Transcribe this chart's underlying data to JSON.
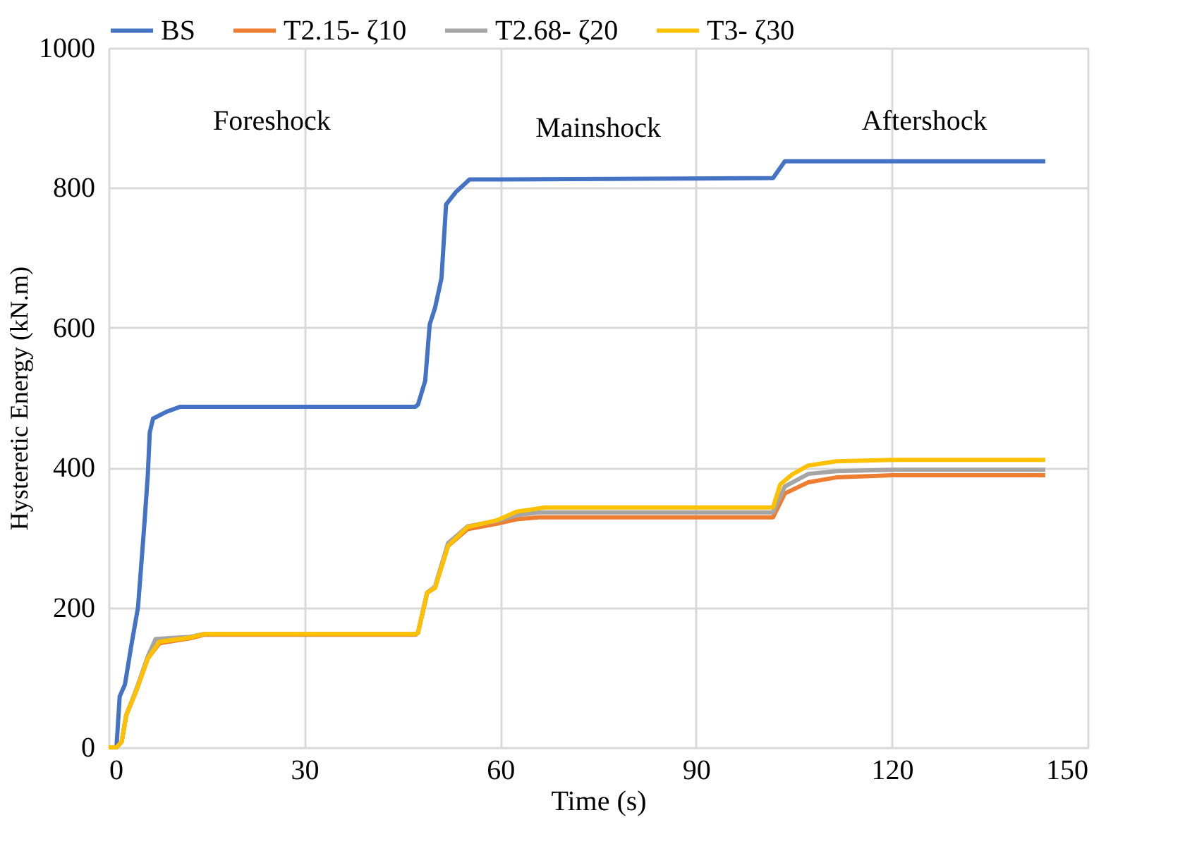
{
  "chart_data": {
    "type": "line",
    "xlabel": "Time (s)",
    "ylabel": "Hysteretic Energy (kN.m)",
    "xlim": [
      0,
      150
    ],
    "xticks": [
      0,
      30,
      60,
      90,
      120,
      150
    ],
    "ylim": [
      0,
      1000
    ],
    "yticks": [
      0,
      200,
      400,
      600,
      800,
      {
        "value": 1000,
        "label": "1000"
      }
    ],
    "grid": true,
    "legend": "top",
    "line_style": "solid",
    "marker": "none",
    "annotations": [
      "Foreshock",
      "Mainshock",
      "Aftershock"
    ],
    "series": [
      {
        "name": "BS",
        "color": "#4472c4",
        "x": [
          0,
          1.2,
          1.7,
          2.5,
          3.5,
          4.5,
          5.5,
          6,
          6.3,
          6.8,
          8.9,
          11,
          47,
          47.4,
          48.5,
          49.2,
          50,
          51,
          51.7,
          53.2,
          55.3,
          60,
          101.8,
          103.6,
          143.5
        ],
        "values": [
          0,
          0,
          73,
          90,
          147,
          200,
          322,
          389,
          450,
          470,
          480,
          487,
          487,
          490,
          524,
          605,
          628,
          671,
          776,
          794,
          812,
          812,
          814,
          838,
          838
        ]
      },
      {
        "name": "T2.15- ζ10",
        "color": "#ed7d31",
        "x": [
          0,
          1.2,
          2,
          2.7,
          4.2,
          6,
          7.8,
          12.5,
          14.6,
          47,
          47.4,
          48.8,
          50,
          52,
          55,
          59.6,
          62.5,
          66,
          101.8,
          103.6,
          107.2,
          111.5,
          120.2,
          143.5
        ],
        "values": [
          0,
          0,
          8,
          46,
          80,
          127,
          149,
          156,
          161,
          161,
          164,
          221,
          228,
          288,
          312,
          320,
          326,
          329,
          329,
          363,
          379,
          386,
          389,
          389
        ]
      },
      {
        "name": "T2.68- ζ20",
        "color": "#a5a5a5",
        "x": [
          0,
          1.2,
          2,
          2.7,
          4.2,
          6,
          7.2,
          12.5,
          14.6,
          47,
          47.4,
          48.8,
          50,
          52,
          55,
          59.6,
          62.5,
          66,
          101.8,
          103.6,
          107.2,
          111.5,
          120.2,
          143.5
        ],
        "values": [
          0,
          0,
          8,
          46,
          82,
          130,
          155,
          158,
          162,
          162,
          164,
          221,
          230,
          292,
          316,
          324,
          332,
          336,
          336,
          373,
          391,
          395,
          397,
          397
        ]
      },
      {
        "name": "T3- ζ30",
        "color": "#ffc000",
        "x": [
          0,
          1.2,
          2,
          2.7,
          4.2,
          6,
          7.8,
          12.5,
          14.6,
          47,
          47.4,
          48.8,
          50,
          52,
          55,
          59.6,
          62.5,
          66.8,
          101.8,
          102.9,
          104.7,
          107.2,
          111.5,
          120.2,
          143.5
        ],
        "values": [
          0,
          0,
          8,
          46,
          80,
          127,
          151,
          157,
          162,
          162,
          164,
          221,
          228,
          288,
          315,
          325,
          337,
          343,
          343,
          376,
          390,
          403,
          409,
          411,
          411
        ]
      }
    ]
  }
}
